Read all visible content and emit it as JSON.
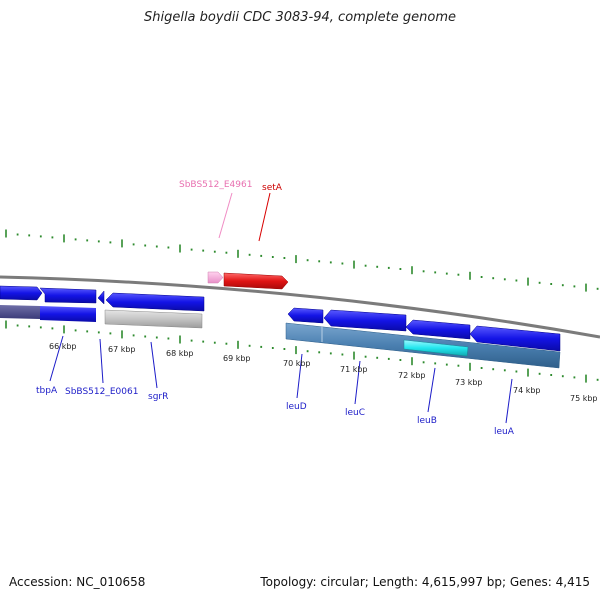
{
  "title": "Shigella boydii CDC 3083-94, complete genome",
  "footer": {
    "accession": "Accession: NC_010658",
    "summary": "Topology: circular; Length: 4,615,997 bp; Genes: 4,415"
  },
  "kbp_labels": [
    "66 kbp",
    "67 kbp",
    "68 kbp",
    "69 kbp",
    "70 kbp",
    "71 kbp",
    "72 kbp",
    "73 kbp",
    "74 kbp",
    "75 kbp"
  ],
  "gene_labels_top": [
    "SbBS512_E4961",
    "setA"
  ],
  "gene_labels_bottom": [
    "tbpA",
    "SbBS512_E0061",
    "sgrR",
    "leuD",
    "leuC",
    "leuB",
    "leuA"
  ],
  "colors": {
    "backbone": "#808080",
    "tick": "#2e8b2e",
    "forward_gene": "#e0191a",
    "pseudo_forward": "#f6a6d7",
    "reverse_gene": "#1515e0",
    "operon": "#4a7fb0",
    "highlight": "#22e6ee",
    "label_blue": "#1c1cc8",
    "label_red": "#cc0000",
    "label_pink": "#e870b0"
  }
}
